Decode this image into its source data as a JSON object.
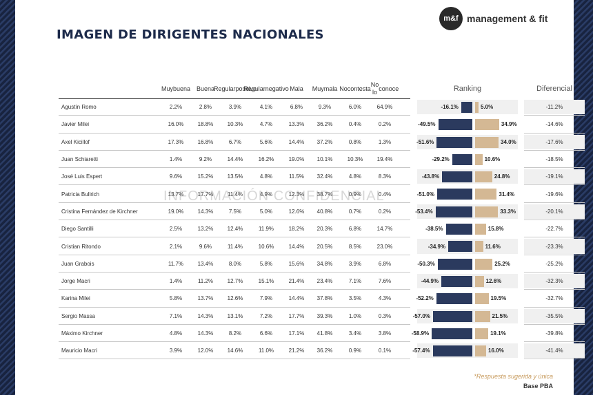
{
  "title": "IMAGEN DE DIRIGENTES NACIONALES",
  "logo": {
    "mark": "m&f",
    "name": "management & fit"
  },
  "watermark": "INFORMACIÓN CONFIDENCIAL",
  "footnote": "*Respuesta sugerida y única",
  "base": "Base PBA",
  "columns": [
    [
      "Muy",
      "buena"
    ],
    [
      "Buena"
    ],
    [
      "Regular",
      "positivo"
    ],
    [
      "Regular",
      "negativo"
    ],
    [
      "Mala"
    ],
    [
      "Muy",
      "mala"
    ],
    [
      "No",
      "contesta"
    ],
    [
      "No lo",
      "conoce"
    ]
  ],
  "ranking_header": "Ranking",
  "diferencial_header": "Diferencial",
  "chart_data": {
    "type": "table",
    "rows": [
      {
        "name": "Agustín Romo",
        "values": [
          "2.2%",
          "2.8%",
          "3.9%",
          "4.1%",
          "6.8%",
          "9.3%",
          "6.0%",
          "64.9%"
        ],
        "neg": -16.1,
        "neg_label": "-16.1%",
        "pos": 5.0,
        "pos_label": "5.0%",
        "diff": "-11.2%"
      },
      {
        "name": "Javier Milei",
        "values": [
          "16.0%",
          "18.8%",
          "10.3%",
          "4.7%",
          "13.3%",
          "36.2%",
          "0.4%",
          "0.2%"
        ],
        "neg": -49.5,
        "neg_label": "-49.5%",
        "pos": 34.9,
        "pos_label": "34.9%",
        "diff": "-14.6%"
      },
      {
        "name": "Axel Kicillof",
        "values": [
          "17.3%",
          "16.8%",
          "6.7%",
          "5.6%",
          "14.4%",
          "37.2%",
          "0.8%",
          "1.3%"
        ],
        "neg": -51.6,
        "neg_label": "-51.6%",
        "pos": 34.0,
        "pos_label": "34.0%",
        "diff": "-17.6%"
      },
      {
        "name": "Juan Schiaretti",
        "values": [
          "1.4%",
          "9.2%",
          "14.4%",
          "16.2%",
          "19.0%",
          "10.1%",
          "10.3%",
          "19.4%"
        ],
        "neg": -29.2,
        "neg_label": "-29.2%",
        "pos": 10.6,
        "pos_label": "10.6%",
        "diff": "-18.5%"
      },
      {
        "name": "José Luis Espert",
        "values": [
          "9.6%",
          "15.2%",
          "13.5%",
          "4.8%",
          "11.5%",
          "32.4%",
          "4.8%",
          "8.3%"
        ],
        "neg": -43.8,
        "neg_label": "-43.8%",
        "pos": 24.8,
        "pos_label": "24.8%",
        "diff": "-19.1%"
      },
      {
        "name": "Patricia Bullrich",
        "values": [
          "13.7%",
          "17.7%",
          "11.4%",
          "4.9%",
          "12.3%",
          "38.7%",
          "0.9%",
          "0.4%"
        ],
        "neg": -51.0,
        "neg_label": "-51.0%",
        "pos": 31.4,
        "pos_label": "31.4%",
        "diff": "-19.6%"
      },
      {
        "name": "Cristina Fernández de Kirchner",
        "values": [
          "19.0%",
          "14.3%",
          "7.5%",
          "5.0%",
          "12.6%",
          "40.8%",
          "0.7%",
          "0.2%"
        ],
        "neg": -53.4,
        "neg_label": "-53.4%",
        "pos": 33.3,
        "pos_label": "33.3%",
        "diff": "-20.1%"
      },
      {
        "name": "Diego Santilli",
        "values": [
          "2.5%",
          "13.2%",
          "12.4%",
          "11.9%",
          "18.2%",
          "20.3%",
          "6.8%",
          "14.7%"
        ],
        "neg": -38.5,
        "neg_label": "-38.5%",
        "pos": 15.8,
        "pos_label": "15.8%",
        "diff": "-22.7%"
      },
      {
        "name": "Cristian Ritondo",
        "values": [
          "2.1%",
          "9.6%",
          "11.4%",
          "10.6%",
          "14.4%",
          "20.5%",
          "8.5%",
          "23.0%"
        ],
        "neg": -34.9,
        "neg_label": "-34.9%",
        "pos": 11.6,
        "pos_label": "11.6%",
        "diff": "-23.3%"
      },
      {
        "name": "Juan Grabois",
        "values": [
          "11.7%",
          "13.4%",
          "8.0%",
          "5.8%",
          "15.6%",
          "34.8%",
          "3.9%",
          "6.8%"
        ],
        "neg": -50.3,
        "neg_label": "-50.3%",
        "pos": 25.2,
        "pos_label": "25.2%",
        "diff": "-25.2%"
      },
      {
        "name": "Jorge Macri",
        "values": [
          "1.4%",
          "11.2%",
          "12.7%",
          "15.1%",
          "21.4%",
          "23.4%",
          "7.1%",
          "7.6%"
        ],
        "neg": -44.9,
        "neg_label": "-44.9%",
        "pos": 12.6,
        "pos_label": "12.6%",
        "diff": "-32.3%"
      },
      {
        "name": "Karina Milei",
        "values": [
          "5.8%",
          "13.7%",
          "12.6%",
          "7.9%",
          "14.4%",
          "37.8%",
          "3.5%",
          "4.3%"
        ],
        "neg": -52.2,
        "neg_label": "-52.2%",
        "pos": 19.5,
        "pos_label": "19.5%",
        "diff": "-32.7%"
      },
      {
        "name": "Sergio Massa",
        "values": [
          "7.1%",
          "14.3%",
          "13.1%",
          "7.2%",
          "17.7%",
          "39.3%",
          "1.0%",
          "0.3%"
        ],
        "neg": -57.0,
        "neg_label": "-57.0%",
        "pos": 21.5,
        "pos_label": "21.5%",
        "diff": "-35.5%"
      },
      {
        "name": "Máximo Kirchner",
        "values": [
          "4.8%",
          "14.3%",
          "8.2%",
          "6.6%",
          "17.1%",
          "41.8%",
          "3.4%",
          "3.8%"
        ],
        "neg": -58.9,
        "neg_label": "-58.9%",
        "pos": 19.1,
        "pos_label": "19.1%",
        "diff": "-39.8%"
      },
      {
        "name": "Mauricio Macri",
        "values": [
          "3.9%",
          "12.0%",
          "14.6%",
          "11.0%",
          "21.2%",
          "36.2%",
          "0.9%",
          "0.1%"
        ],
        "neg": -57.4,
        "neg_label": "-57.4%",
        "pos": 16.0,
        "pos_label": "16.0%",
        "diff": "-41.4%"
      }
    ],
    "colors": {
      "negative": "#2b3a5e",
      "positive": "#d4b894"
    }
  }
}
